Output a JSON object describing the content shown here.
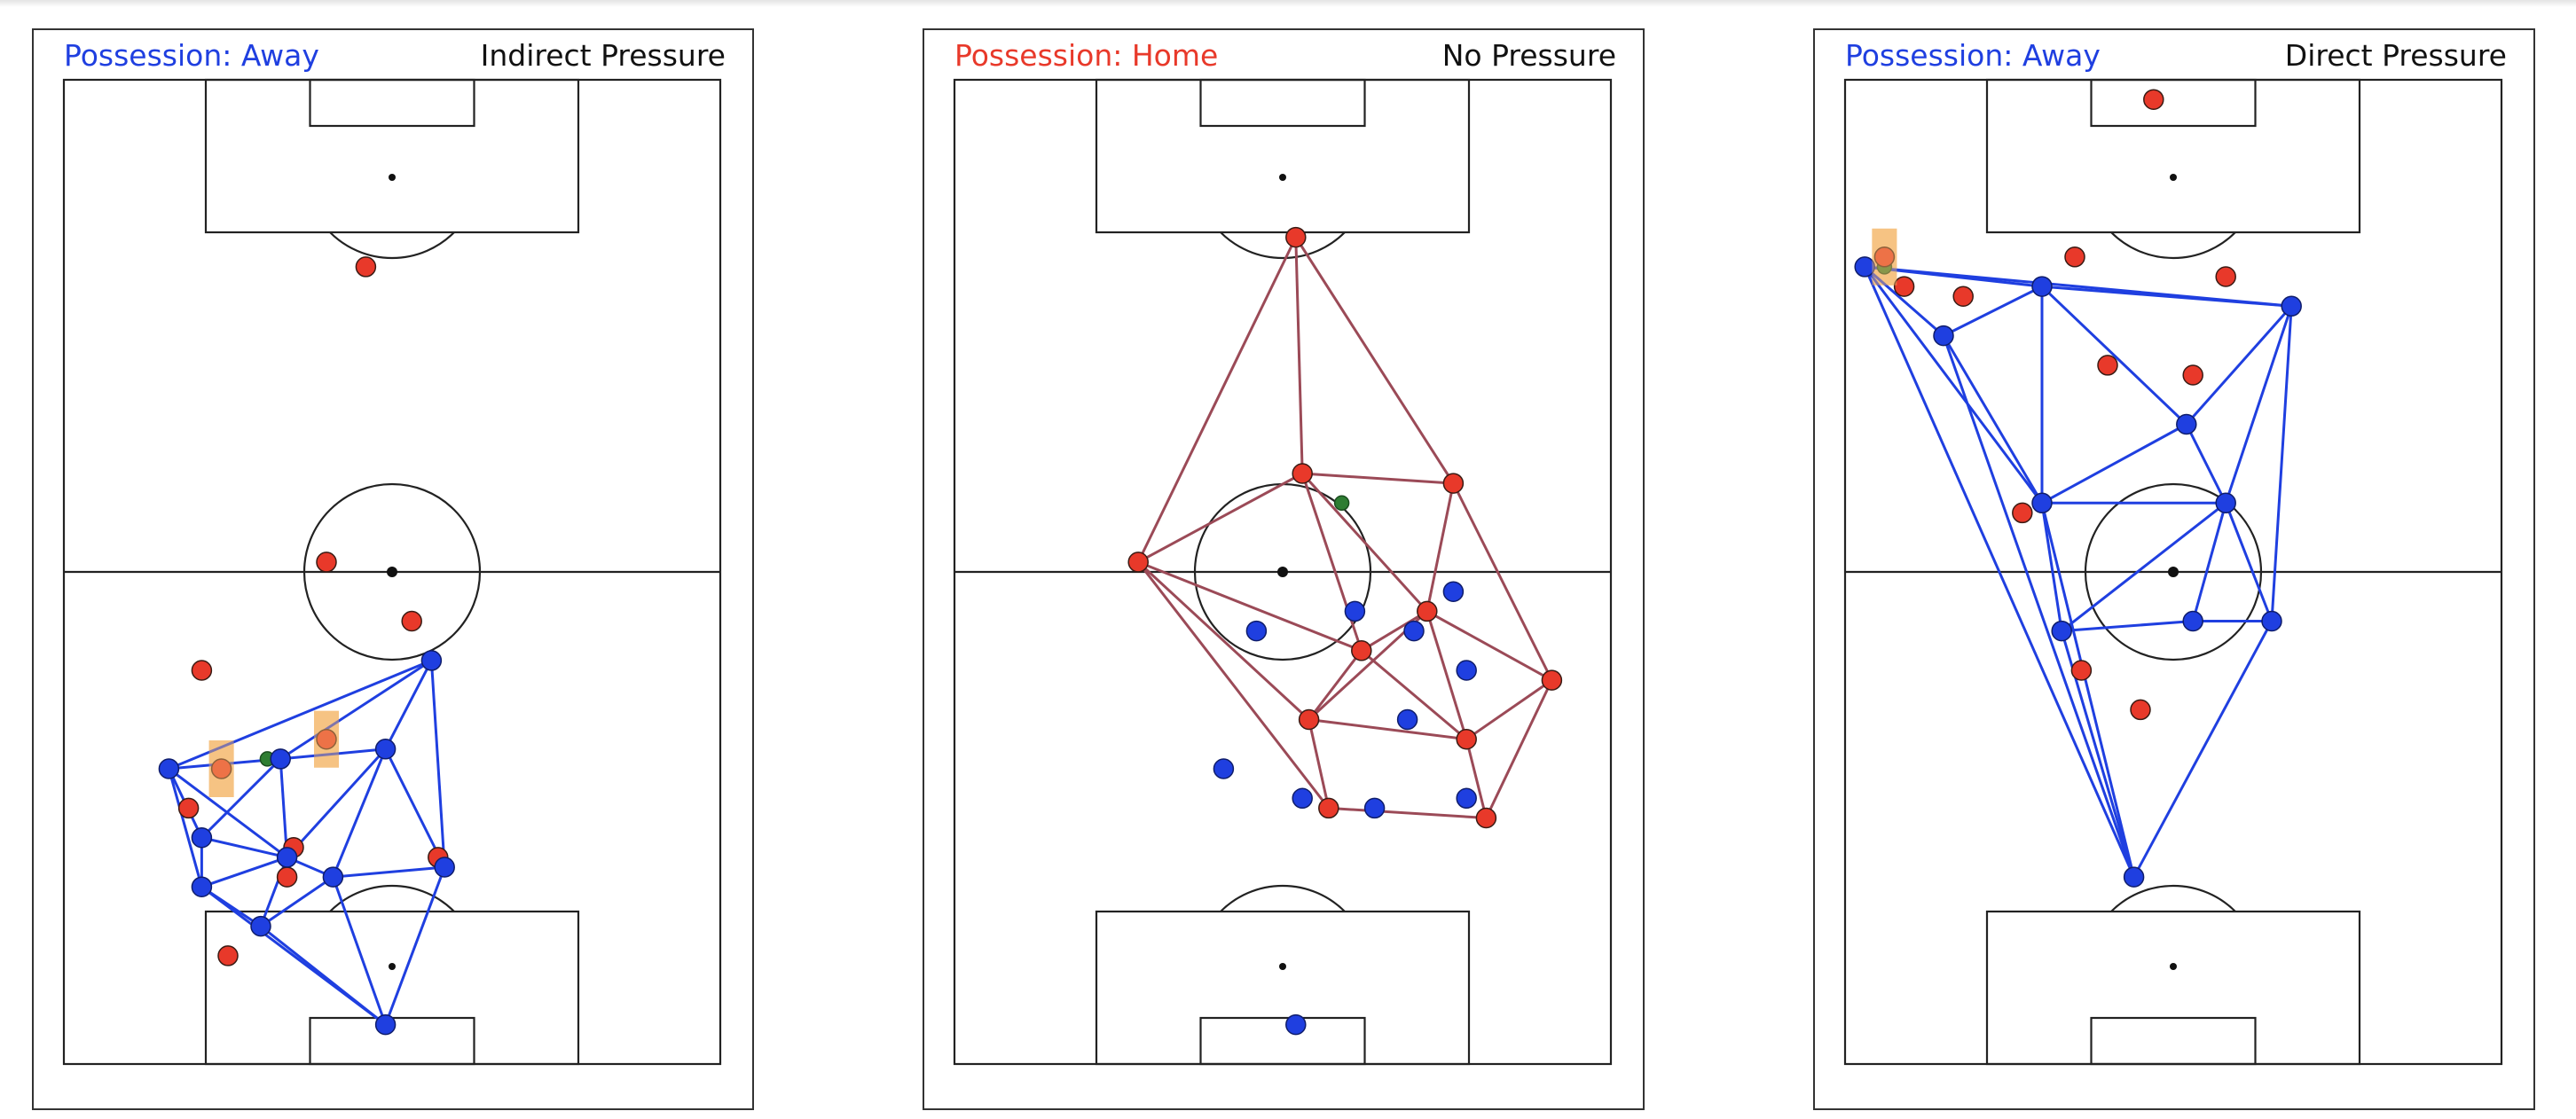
{
  "colors": {
    "home": "#e8392a",
    "away": "#1f3fe0",
    "home_network": "#9b4a57",
    "away_network": "#1f3fe0",
    "ball": "#2e7d32",
    "highlight": "#f5b76b",
    "pitch_line": "#222222"
  },
  "panels": [
    {
      "possession_label": "Possession: Away",
      "possession_color": "#1f3fe0",
      "pressure_label": "Indirect Pressure",
      "network_team": "away",
      "ball": [
        0.31,
        0.31
      ],
      "highlights": [
        [
          0.24,
          0.3
        ],
        [
          0.4,
          0.33
        ]
      ],
      "home_players": [
        [
          0.46,
          0.81
        ],
        [
          0.4,
          0.51
        ],
        [
          0.53,
          0.45
        ],
        [
          0.21,
          0.4
        ],
        [
          0.24,
          0.3
        ],
        [
          0.4,
          0.33
        ],
        [
          0.19,
          0.26
        ],
        [
          0.35,
          0.22
        ],
        [
          0.34,
          0.19
        ],
        [
          0.57,
          0.21
        ],
        [
          0.25,
          0.11
        ]
      ],
      "away_players": [
        [
          0.56,
          0.41
        ],
        [
          0.16,
          0.3
        ],
        [
          0.33,
          0.31
        ],
        [
          0.49,
          0.32
        ],
        [
          0.21,
          0.23
        ],
        [
          0.34,
          0.21
        ],
        [
          0.41,
          0.19
        ],
        [
          0.58,
          0.2
        ],
        [
          0.21,
          0.18
        ],
        [
          0.3,
          0.14
        ],
        [
          0.49,
          0.04
        ]
      ],
      "edges": [
        [
          0,
          1
        ],
        [
          0,
          2
        ],
        [
          0,
          3
        ],
        [
          0,
          7
        ],
        [
          1,
          2
        ],
        [
          1,
          4
        ],
        [
          1,
          8
        ],
        [
          1,
          5
        ],
        [
          2,
          3
        ],
        [
          2,
          5
        ],
        [
          2,
          4
        ],
        [
          3,
          6
        ],
        [
          3,
          5
        ],
        [
          3,
          7
        ],
        [
          4,
          5
        ],
        [
          4,
          8
        ],
        [
          5,
          6
        ],
        [
          5,
          8
        ],
        [
          5,
          9
        ],
        [
          6,
          7
        ],
        [
          6,
          9
        ],
        [
          6,
          10
        ],
        [
          7,
          10
        ],
        [
          8,
          9
        ],
        [
          8,
          10
        ],
        [
          9,
          10
        ]
      ]
    },
    {
      "possession_label": "Possession: Home",
      "possession_color": "#e8392a",
      "pressure_label": "No Pressure",
      "network_team": "home",
      "ball": [
        0.59,
        0.57
      ],
      "highlights": [],
      "home_players": [
        [
          0.52,
          0.84
        ],
        [
          0.53,
          0.6
        ],
        [
          0.76,
          0.59
        ],
        [
          0.28,
          0.51
        ],
        [
          0.72,
          0.46
        ],
        [
          0.62,
          0.42
        ],
        [
          0.91,
          0.39
        ],
        [
          0.54,
          0.35
        ],
        [
          0.78,
          0.33
        ],
        [
          0.57,
          0.26
        ],
        [
          0.81,
          0.25
        ]
      ],
      "away_players": [
        [
          0.61,
          0.46
        ],
        [
          0.76,
          0.48
        ],
        [
          0.46,
          0.44
        ],
        [
          0.7,
          0.44
        ],
        [
          0.78,
          0.4
        ],
        [
          0.69,
          0.35
        ],
        [
          0.41,
          0.3
        ],
        [
          0.53,
          0.27
        ],
        [
          0.64,
          0.26
        ],
        [
          0.78,
          0.27
        ],
        [
          0.52,
          0.04
        ]
      ],
      "edges": [
        [
          0,
          1
        ],
        [
          0,
          2
        ],
        [
          0,
          3
        ],
        [
          1,
          2
        ],
        [
          1,
          3
        ],
        [
          1,
          4
        ],
        [
          1,
          5
        ],
        [
          2,
          4
        ],
        [
          2,
          6
        ],
        [
          3,
          5
        ],
        [
          3,
          7
        ],
        [
          3,
          9
        ],
        [
          4,
          5
        ],
        [
          4,
          6
        ],
        [
          4,
          8
        ],
        [
          4,
          7
        ],
        [
          5,
          7
        ],
        [
          5,
          8
        ],
        [
          6,
          8
        ],
        [
          6,
          10
        ],
        [
          7,
          9
        ],
        [
          7,
          8
        ],
        [
          8,
          10
        ],
        [
          9,
          10
        ]
      ]
    },
    {
      "possession_label": "Possession: Away",
      "possession_color": "#1f3fe0",
      "pressure_label": "Direct Pressure",
      "network_team": "away",
      "ball": [
        0.06,
        0.81
      ],
      "highlights": [
        [
          0.06,
          0.82
        ]
      ],
      "home_players": [
        [
          0.47,
          0.98
        ],
        [
          0.35,
          0.82
        ],
        [
          0.58,
          0.8
        ],
        [
          0.09,
          0.79
        ],
        [
          0.18,
          0.78
        ],
        [
          0.4,
          0.71
        ],
        [
          0.53,
          0.7
        ],
        [
          0.27,
          0.56
        ],
        [
          0.36,
          0.4
        ],
        [
          0.45,
          0.36
        ],
        [
          0.06,
          0.82
        ]
      ],
      "away_players": [
        [
          0.03,
          0.81
        ],
        [
          0.3,
          0.79
        ],
        [
          0.68,
          0.77
        ],
        [
          0.15,
          0.74
        ],
        [
          0.52,
          0.65
        ],
        [
          0.3,
          0.57
        ],
        [
          0.58,
          0.57
        ],
        [
          0.33,
          0.44
        ],
        [
          0.53,
          0.45
        ],
        [
          0.65,
          0.45
        ],
        [
          0.44,
          0.19
        ]
      ],
      "edges": [
        [
          0,
          1
        ],
        [
          0,
          2
        ],
        [
          0,
          3
        ],
        [
          0,
          5
        ],
        [
          0,
          10
        ],
        [
          1,
          2
        ],
        [
          1,
          3
        ],
        [
          1,
          4
        ],
        [
          1,
          5
        ],
        [
          2,
          4
        ],
        [
          2,
          6
        ],
        [
          2,
          9
        ],
        [
          3,
          5
        ],
        [
          3,
          10
        ],
        [
          4,
          5
        ],
        [
          4,
          6
        ],
        [
          5,
          6
        ],
        [
          5,
          7
        ],
        [
          5,
          10
        ],
        [
          6,
          7
        ],
        [
          6,
          8
        ],
        [
          6,
          9
        ],
        [
          7,
          8
        ],
        [
          7,
          10
        ],
        [
          8,
          9
        ],
        [
          9,
          10
        ]
      ]
    }
  ]
}
